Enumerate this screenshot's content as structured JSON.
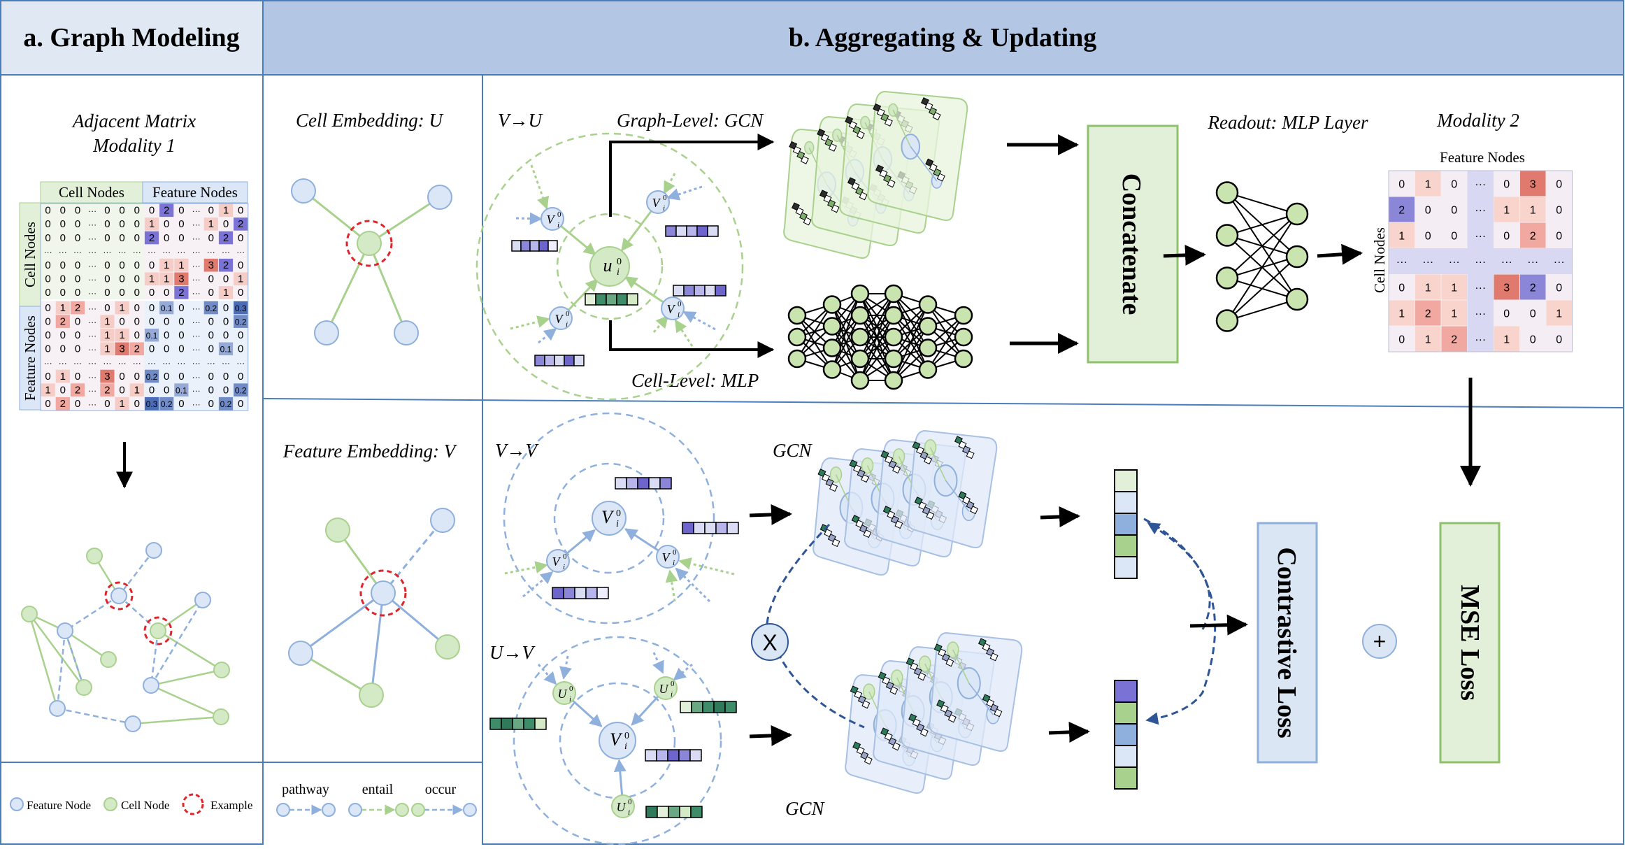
{
  "header": {
    "left_title": "a. Graph Modeling",
    "right_title": "b. Aggregating & Updating"
  },
  "panel_a": {
    "matrix_title_line1": "Adjacent Matrix",
    "matrix_title_line2": "Modality 1",
    "col_header_cell": "Cell Nodes",
    "col_header_feature": "Feature Nodes",
    "row_header_cell": "Cell Nodes",
    "row_header_feature": "Feature Nodes",
    "matrix_rows": [
      [
        "0",
        "0",
        "0",
        "···",
        "0",
        "0",
        "0",
        "0",
        "2",
        "0",
        "···",
        "0",
        "1",
        "0"
      ],
      [
        "0",
        "0",
        "0",
        "···",
        "0",
        "0",
        "0",
        "1",
        "0",
        "0",
        "···",
        "1",
        "0",
        "2"
      ],
      [
        "0",
        "0",
        "0",
        "···",
        "0",
        "0",
        "0",
        "2",
        "0",
        "0",
        "···",
        "0",
        "2",
        "0"
      ],
      [
        "···",
        "···",
        "···",
        "···",
        "···",
        "···",
        "···",
        "···",
        "···",
        "···",
        "···",
        "···",
        "···",
        "···"
      ],
      [
        "0",
        "0",
        "0",
        "···",
        "0",
        "0",
        "0",
        "0",
        "1",
        "1",
        "···",
        "3",
        "2",
        "0"
      ],
      [
        "0",
        "0",
        "0",
        "···",
        "0",
        "0",
        "0",
        "1",
        "1",
        "3",
        "···",
        "0",
        "0",
        "1"
      ],
      [
        "0",
        "0",
        "0",
        "···",
        "0",
        "0",
        "0",
        "0",
        "0",
        "2",
        "···",
        "0",
        "1",
        "0"
      ],
      [
        "0",
        "1",
        "2",
        "···",
        "0",
        "1",
        "0",
        "0",
        "0.1",
        "0",
        "···",
        "0.2",
        "0",
        "0.3"
      ],
      [
        "0",
        "2",
        "0",
        "···",
        "1",
        "0",
        "0",
        "0",
        "0",
        "0",
        "···",
        "0",
        "0",
        "0.2"
      ],
      [
        "0",
        "0",
        "0",
        "···",
        "1",
        "1",
        "0",
        "0.1",
        "0",
        "0",
        "···",
        "0",
        "0",
        "0"
      ],
      [
        "0",
        "0",
        "0",
        "···",
        "1",
        "3",
        "2",
        "0",
        "0",
        "0",
        "···",
        "0",
        "0.1",
        "0"
      ],
      [
        "···",
        "···",
        "···",
        "···",
        "···",
        "···",
        "···",
        "···",
        "···",
        "···",
        "···",
        "···",
        "···",
        "···"
      ],
      [
        "0",
        "1",
        "0",
        "···",
        "3",
        "0",
        "0",
        "0.2",
        "0",
        "0",
        "···",
        "0",
        "0",
        "0"
      ],
      [
        "1",
        "0",
        "2",
        "···",
        "2",
        "0",
        "1",
        "0",
        "0",
        "0.1",
        "···",
        "0",
        "0",
        "0.2"
      ],
      [
        "0",
        "2",
        "0",
        "···",
        "0",
        "1",
        "0",
        "0.3",
        "0.2",
        "0",
        "···",
        "0",
        "0.2",
        "0"
      ]
    ],
    "legend": {
      "feature_node": "Feature Node",
      "cell_node": "Cell Node",
      "example": "Example"
    }
  },
  "panel_b_left": {
    "cell_embedding": "Cell Embedding: U",
    "feature_embedding": "Feature Embedding: V",
    "legend": {
      "pathway": "pathway",
      "entail": "entail",
      "occur": "occur"
    }
  },
  "panel_b_main": {
    "v_to_u": "V→U",
    "graph_level": "Graph-Level: GCN",
    "cell_level": "Cell-Level: MLP",
    "concatenate": "Concatenate",
    "readout": "Readout: MLP Layer",
    "modality2": "Modality 2",
    "m2_feature_nodes": "Feature Nodes",
    "m2_cell_nodes": "Cell Nodes",
    "m2_rows": [
      [
        "0",
        "1",
        "0",
        "···",
        "0",
        "3",
        "0"
      ],
      [
        "2",
        "0",
        "0",
        "···",
        "1",
        "1",
        "0"
      ],
      [
        "1",
        "0",
        "0",
        "···",
        "0",
        "2",
        "0"
      ],
      [
        "···",
        "···",
        "···",
        "···",
        "···",
        "···",
        "···"
      ],
      [
        "0",
        "1",
        "1",
        "···",
        "3",
        "2",
        "0"
      ],
      [
        "1",
        "2",
        "1",
        "···",
        "0",
        "0",
        "1"
      ],
      [
        "0",
        "1",
        "2",
        "···",
        "1",
        "0",
        "0"
      ]
    ],
    "v_to_v": "V→V",
    "u_to_v": "U→V",
    "gcn_top": "GCN",
    "gcn_bottom": "GCN",
    "times": "X",
    "contrastive": "Contrastive Loss",
    "plus": "+",
    "mse": "MSE Loss",
    "node_u0": "u",
    "node_v0": "V",
    "node_U0": "U",
    "sup0": "0",
    "sub_i": "i"
  },
  "colors": {
    "header_left": "#dfe8f3",
    "header_right": "#b3c6e4",
    "cell_green": "#a9d18e",
    "cell_green_fill": "#d4e9c6",
    "feature_blue": "#8fb0dd",
    "feature_blue_fill": "#dbe6f6",
    "example_red": "#e0242b",
    "concat_fill": "#e2efd9",
    "concat_border": "#8fc16b",
    "contrastive_fill": "#dae6f4",
    "mse_fill": "#e2efd9"
  }
}
